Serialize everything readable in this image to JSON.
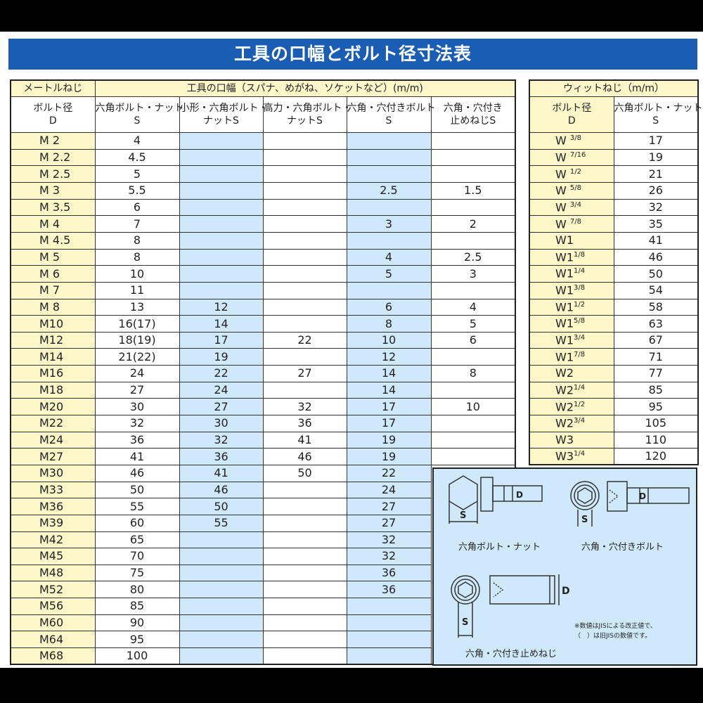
{
  "title": "工具の口幅とボルト径寸法表",
  "metric": {
    "header_left": "メートルねじ",
    "header_main": "工具の口幅（スパナ、めがね、ソケットなど）(m/m)",
    "columns": [
      "ボルト径\nD",
      "六角ボルト・ナット\nS",
      "小形・六角ボルト・\nナットS",
      "高力・六角ボルト・\nナットS",
      "六角・穴付きボルト\nS",
      "六角・穴付き\n止めねじS"
    ],
    "rows": [
      [
        "M 2",
        "4",
        "",
        "",
        "",
        ""
      ],
      [
        "M 2.2",
        "4.5",
        "",
        "",
        "",
        ""
      ],
      [
        "M 2.5",
        "5",
        "",
        "",
        "",
        ""
      ],
      [
        "M 3",
        "5.5",
        "",
        "",
        "2.5",
        "1.5"
      ],
      [
        "M 3.5",
        "6",
        "",
        "",
        "",
        ""
      ],
      [
        "M 4",
        "7",
        "",
        "",
        "3",
        "2"
      ],
      [
        "M 4.5",
        "8",
        "",
        "",
        "",
        ""
      ],
      [
        "M 5",
        "8",
        "",
        "",
        "4",
        "2.5"
      ],
      [
        "M 6",
        "10",
        "",
        "",
        "5",
        "3"
      ],
      [
        "M 7",
        "11",
        "",
        "",
        "",
        ""
      ],
      [
        "M 8",
        "13",
        "12",
        "",
        "6",
        "4"
      ],
      [
        "M10",
        "16(17)",
        "14",
        "",
        "8",
        "5"
      ],
      [
        "M12",
        "18(19)",
        "17",
        "22",
        "10",
        "6"
      ],
      [
        "M14",
        "21(22)",
        "19",
        "",
        "12",
        ""
      ],
      [
        "M16",
        "24",
        "22",
        "27",
        "14",
        "8"
      ],
      [
        "M18",
        "27",
        "24",
        "",
        "14",
        ""
      ],
      [
        "M20",
        "30",
        "27",
        "32",
        "17",
        "10"
      ],
      [
        "M22",
        "32",
        "30",
        "36",
        "17",
        ""
      ],
      [
        "M24",
        "36",
        "32",
        "41",
        "19",
        ""
      ],
      [
        "M27",
        "41",
        "36",
        "46",
        "19",
        ""
      ],
      [
        "M30",
        "46",
        "41",
        "50",
        "22",
        ""
      ],
      [
        "M33",
        "50",
        "46",
        "",
        "24",
        ""
      ],
      [
        "M36",
        "55",
        "50",
        "",
        "27",
        ""
      ],
      [
        "M39",
        "60",
        "55",
        "",
        "27",
        ""
      ],
      [
        "M42",
        "65",
        "",
        "",
        "32",
        ""
      ],
      [
        "M45",
        "70",
        "",
        "",
        "32",
        ""
      ],
      [
        "M48",
        "75",
        "",
        "",
        "36",
        ""
      ],
      [
        "M52",
        "80",
        "",
        "",
        "36",
        ""
      ],
      [
        "M56",
        "85",
        "",
        "",
        "",
        ""
      ],
      [
        "M60",
        "90",
        "",
        "",
        "",
        ""
      ],
      [
        "M64",
        "95",
        "",
        "",
        "",
        ""
      ],
      [
        "M68",
        "100",
        "",
        "",
        "",
        ""
      ]
    ]
  },
  "whitworth": {
    "header": "ウィットねじ（m/m）",
    "columns": [
      "ボルト径\nD",
      "六角ボルト・ナット\nS"
    ],
    "rows": [
      {
        "d": "W",
        "n": "3",
        "m": "8",
        "s": "17"
      },
      {
        "d": "W",
        "n": "7",
        "m": "16",
        "s": "19"
      },
      {
        "d": "W",
        "n": "1",
        "m": "2",
        "s": "21"
      },
      {
        "d": "W",
        "n": "5",
        "m": "8",
        "s": "26"
      },
      {
        "d": "W",
        "n": "3",
        "m": "4",
        "s": "32"
      },
      {
        "d": "W",
        "n": "7",
        "m": "8",
        "s": "35"
      },
      {
        "d": "W1",
        "n": "",
        "m": "",
        "s": "41"
      },
      {
        "d": "W1",
        "n": "1",
        "m": "8",
        "s": "46"
      },
      {
        "d": "W1",
        "n": "1",
        "m": "4",
        "s": "50"
      },
      {
        "d": "W1",
        "n": "3",
        "m": "8",
        "s": "54"
      },
      {
        "d": "W1",
        "n": "1",
        "m": "2",
        "s": "58"
      },
      {
        "d": "W1",
        "n": "5",
        "m": "8",
        "s": "63"
      },
      {
        "d": "W1",
        "n": "3",
        "m": "4",
        "s": "67"
      },
      {
        "d": "W1",
        "n": "7",
        "m": "8",
        "s": "71"
      },
      {
        "d": "W2",
        "n": "",
        "m": "",
        "s": "77"
      },
      {
        "d": "W2",
        "n": "1",
        "m": "4",
        "s": "85"
      },
      {
        "d": "W2",
        "n": "1",
        "m": "2",
        "s": "95"
      },
      {
        "d": "W2",
        "n": "3",
        "m": "4",
        "s": "105"
      },
      {
        "d": "W3",
        "n": "",
        "m": "",
        "s": "110"
      },
      {
        "d": "W3",
        "n": "1",
        "m": "4",
        "s": "120"
      }
    ]
  },
  "diagram": {
    "hex_caption": "六角ボルト・ナット",
    "socket_caption": "六角・穴付きボルト",
    "set_caption": "六角・穴付き止めねじ",
    "label_s": "S",
    "label_d": "D",
    "note1": "※数値はJISによる改正値で、",
    "note2": "（　）は旧JISの数値です。"
  },
  "colors": {
    "title_bar": "#1a5db4",
    "yellow_col": "#fdf6c9",
    "blue_col": "#cfe9fb"
  }
}
